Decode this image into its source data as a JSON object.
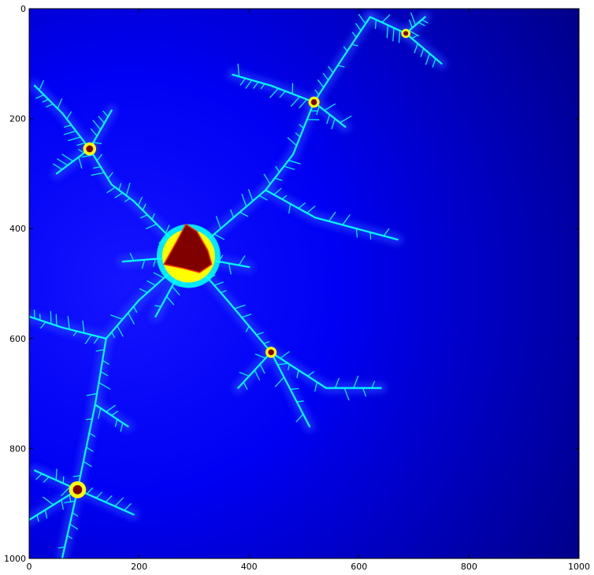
{
  "chart_data": {
    "type": "heatmap",
    "title": "",
    "xlabel": "",
    "ylabel": "",
    "xlim": [
      0,
      1000
    ],
    "ylim": [
      1000,
      0
    ],
    "x_axis_origin": "bottom",
    "y_axis_inverted": true,
    "x_ticks": [
      0,
      200,
      400,
      600,
      800,
      1000
    ],
    "y_ticks": [
      0,
      200,
      400,
      600,
      800,
      1000
    ],
    "x_tick_labels": [
      "0",
      "200",
      "400",
      "600",
      "800",
      "1000"
    ],
    "y_tick_labels": [
      "0",
      "200",
      "400",
      "600",
      "800",
      "1000"
    ],
    "colormap": "jet",
    "grid": false,
    "legend": "none",
    "image_content": "Julia-set style fractal escape-time image",
    "colors": {
      "background_deep": "#00008b",
      "background_mid": "#0000cd",
      "background_light": "#0000ff",
      "filament": "#00ffff",
      "filament_highlight": "#ffff00",
      "core": "#800000"
    },
    "features": {
      "main_core": {
        "x": 290,
        "y": 450,
        "r": 40
      },
      "sub_cores": [
        {
          "x": 110,
          "y": 255,
          "r": 5
        },
        {
          "x": 518,
          "y": 170,
          "r": 4
        },
        {
          "x": 440,
          "y": 625,
          "r": 4
        },
        {
          "x": 88,
          "y": 875,
          "r": 7
        },
        {
          "x": 685,
          "y": 45,
          "r": 3
        }
      ],
      "filaments": [
        [
          [
            290,
            450
          ],
          [
            240,
            400
          ],
          [
            190,
            350
          ],
          [
            150,
            320
          ],
          [
            110,
            255
          ]
        ],
        [
          [
            110,
            255
          ],
          [
            60,
            190
          ],
          [
            10,
            140
          ]
        ],
        [
          [
            110,
            255
          ],
          [
            150,
            185
          ]
        ],
        [
          [
            110,
            255
          ],
          [
            50,
            300
          ]
        ],
        [
          [
            290,
            450
          ],
          [
            360,
            390
          ],
          [
            430,
            330
          ],
          [
            480,
            265
          ],
          [
            518,
            170
          ],
          [
            570,
            90
          ],
          [
            620,
            15
          ]
        ],
        [
          [
            518,
            170
          ],
          [
            440,
            140
          ],
          [
            370,
            120
          ]
        ],
        [
          [
            518,
            170
          ],
          [
            575,
            215
          ]
        ],
        [
          [
            620,
            15
          ],
          [
            685,
            45
          ],
          [
            750,
            100
          ]
        ],
        [
          [
            685,
            45
          ],
          [
            720,
            15
          ]
        ],
        [
          [
            430,
            330
          ],
          [
            520,
            380
          ],
          [
            670,
            420
          ]
        ],
        [
          [
            290,
            450
          ],
          [
            360,
            530
          ],
          [
            440,
            625
          ],
          [
            540,
            690
          ],
          [
            640,
            690
          ]
        ],
        [
          [
            440,
            625
          ],
          [
            510,
            760
          ]
        ],
        [
          [
            440,
            625
          ],
          [
            380,
            690
          ]
        ],
        [
          [
            290,
            450
          ],
          [
            200,
            530
          ],
          [
            140,
            600
          ],
          [
            120,
            720
          ],
          [
            88,
            875
          ],
          [
            60,
            1000
          ]
        ],
        [
          [
            140,
            600
          ],
          [
            60,
            580
          ],
          [
            0,
            560
          ]
        ],
        [
          [
            88,
            875
          ],
          [
            10,
            840
          ]
        ],
        [
          [
            88,
            875
          ],
          [
            0,
            930
          ]
        ],
        [
          [
            88,
            875
          ],
          [
            190,
            920
          ]
        ],
        [
          [
            120,
            720
          ],
          [
            180,
            760
          ]
        ],
        [
          [
            290,
            450
          ],
          [
            400,
            470
          ]
        ],
        [
          [
            290,
            450
          ],
          [
            170,
            460
          ]
        ],
        [
          [
            290,
            450
          ],
          [
            230,
            560
          ]
        ]
      ]
    }
  }
}
